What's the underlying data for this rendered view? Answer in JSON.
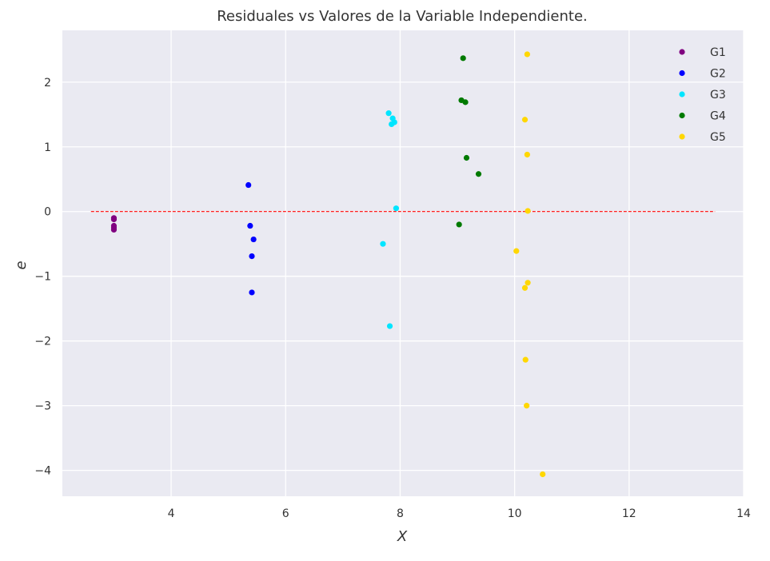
{
  "chart_data": {
    "type": "scatter",
    "title": "Residuales vs Valores de la Variable Independiente.",
    "xlabel": "X",
    "ylabel": "e",
    "xlim": [
      2.1,
      14
    ],
    "ylim": [
      -4.4,
      2.8
    ],
    "xticks": [
      4,
      6,
      8,
      10,
      12,
      14
    ],
    "yticks": [
      -4,
      -3,
      -2,
      -1,
      0,
      1,
      2
    ],
    "xtick_labels": [
      "4",
      "6",
      "8",
      "10",
      "12",
      "14"
    ],
    "ytick_labels": [
      "−4",
      "−3",
      "−2",
      "−1",
      "0",
      "1",
      "2"
    ],
    "grid": true,
    "legend_position": "top-right",
    "reference_line": {
      "y": 0,
      "x_range": [
        2.6,
        13.5
      ],
      "color": "#ff0000",
      "style": "dashed"
    },
    "series": [
      {
        "name": "G1",
        "color": "#800080",
        "points": [
          [
            3.0,
            -0.1
          ],
          [
            3.0,
            -0.12
          ],
          [
            3.0,
            -0.22
          ],
          [
            3.0,
            -0.25
          ],
          [
            3.0,
            -0.28
          ]
        ]
      },
      {
        "name": "G2",
        "color": "#0000ff",
        "points": [
          [
            5.35,
            0.41
          ],
          [
            5.38,
            -0.22
          ],
          [
            5.44,
            -0.43
          ],
          [
            5.41,
            -0.69
          ],
          [
            5.41,
            -1.25
          ]
        ]
      },
      {
        "name": "G3",
        "color": "#00e5ff",
        "points": [
          [
            7.8,
            1.52
          ],
          [
            7.87,
            1.44
          ],
          [
            7.9,
            1.38
          ],
          [
            7.85,
            1.35
          ],
          [
            7.93,
            0.05
          ],
          [
            7.7,
            -0.5
          ],
          [
            7.82,
            -1.77
          ]
        ]
      },
      {
        "name": "G4",
        "color": "#007a00",
        "points": [
          [
            9.1,
            2.37
          ],
          [
            9.07,
            1.72
          ],
          [
            9.14,
            1.69
          ],
          [
            9.16,
            0.83
          ],
          [
            9.37,
            0.58
          ],
          [
            9.03,
            -0.2
          ]
        ]
      },
      {
        "name": "G5",
        "color": "#ffd700",
        "points": [
          [
            10.22,
            2.43
          ],
          [
            10.18,
            1.42
          ],
          [
            10.22,
            0.88
          ],
          [
            10.23,
            0.01
          ],
          [
            10.03,
            -0.61
          ],
          [
            10.23,
            -1.1
          ],
          [
            10.18,
            -1.18
          ],
          [
            10.19,
            -2.29
          ],
          [
            10.21,
            -3.0
          ],
          [
            10.49,
            -4.06
          ]
        ]
      }
    ]
  }
}
